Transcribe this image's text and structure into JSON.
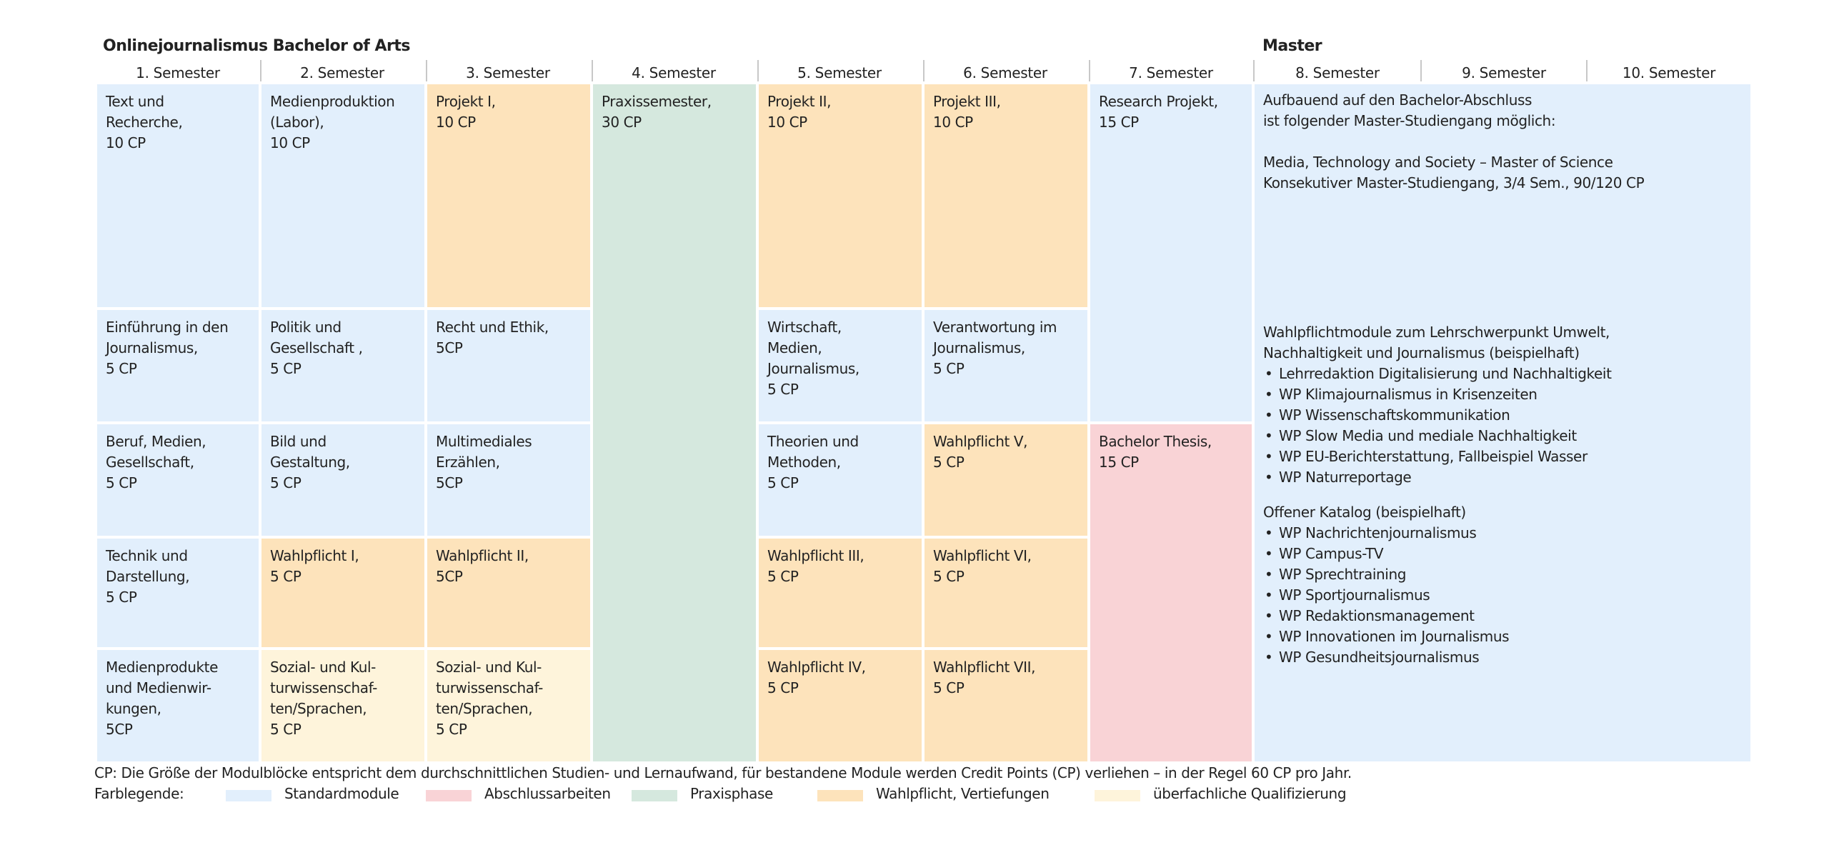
{
  "headings": {
    "bachelor": "Onlinejournalismus Bachelor of Arts",
    "master": "Master"
  },
  "semesters": [
    "1. Semester",
    "2. Semester",
    "3. Semester",
    "4. Semester",
    "5. Semester",
    "6. Semester",
    "7. Semester",
    "8. Semester",
    "9. Semester",
    "10. Semester"
  ],
  "colors": {
    "standard": "#e2effc",
    "thesis": "#f9d3d6",
    "practice": "#d5e8de",
    "elective": "#fde3bb",
    "interdisciplinary": "#fef4db"
  },
  "modules": {
    "s1": [
      "Text und\nRecherche,\n10 CP",
      "Einführung in den\nJournalismus,\n5 CP",
      "Beruf, Medien,\nGesellschaft,\n5 CP",
      "Technik und\nDarstellung,\n5 CP",
      "Medienprodukte\nund Medienwir-\nkungen,\n5CP"
    ],
    "s2": [
      "Medienproduktion\n(Labor),\n10 CP",
      "Politik und\nGesellschaft ,\n5 CP",
      "Bild und\nGestaltung,\n5 CP",
      "Wahlpflicht I,\n5 CP",
      "Sozial- und Kul-\nturwissenschaf-\nten/Sprachen,\n5 CP"
    ],
    "s3": [
      "Projekt I,\n10 CP",
      "Recht und Ethik,\n5CP",
      "Multimediales\nErzählen,\n5CP",
      "Wahlpflicht II,\n5CP",
      "Sozial- und Kul-\nturwissenschaf-\nten/Sprachen,\n5 CP"
    ],
    "s4": [
      "Praxissemester,\n30 CP"
    ],
    "s5": [
      "Projekt II,\n10 CP",
      "Wirtschaft,\nMedien,\nJournalismus,\n5 CP",
      "Theorien und\nMethoden,\n5 CP",
      "Wahlpflicht III,\n5 CP",
      "Wahlpflicht IV,\n5 CP"
    ],
    "s6": [
      "Projekt III,\n10 CP",
      "Verantwortung im\nJournalismus,\n5 CP",
      "Wahlpflicht V,\n5 CP",
      "Wahlpflicht VI,\n5 CP",
      "Wahlpflicht VII,\n5 CP"
    ],
    "s7": [
      "Research Projekt,\n15 CP",
      "Bachelor Thesis,\n15 CP"
    ]
  },
  "master_panel": {
    "intro": "Aufbauend auf den Bachelor-Abschluss\nist folgender Master-Studiengang möglich:",
    "program": "Media, Technology and Society –  Master of Science\nKonsekutiver Master-Studiengang, 3/4 Sem., 90/120 CP",
    "electives_title": "Wahlpflichtmodule zum Lehrschwerpunkt Umwelt,\nNachhaltigkeit und Journalismus (beispielhaft)",
    "electives": [
      "Lehrredaktion Digitalisierung und Nachhaltigkeit",
      "WP Klimajournalismus in Krisenzeiten",
      "WP Wissenschaftskommunikation",
      "WP Slow Media und mediale Nachhaltigkeit",
      "WP EU-Berichterstattung, Fallbeispiel Wasser",
      "WP Naturreportage"
    ],
    "catalog_title": "Offener Katalog (beispielhaft)",
    "catalog": [
      "WP Nachrichtenjournalismus",
      "WP Campus-TV",
      "WP Sprechtraining",
      "WP Sportjournalismus",
      "WP Redaktionsmanagement",
      "WP Innovationen im Journalismus",
      "WP Gesundheitsjournalismus"
    ]
  },
  "footnote": "CP: Die Größe der Modulblöcke entspricht dem durchschnittlichen Studien- und Lernaufwand, für bestandene Module werden Credit Points (CP) verliehen –  in der Regel 60 CP pro Jahr.",
  "legend": {
    "title": "Farblegende:",
    "items": [
      "Standardmodule",
      "Abschlussarbeiten",
      "Praxisphase",
      "Wahlpflicht, Vertiefungen",
      "überfachliche Qualifizierung"
    ]
  }
}
